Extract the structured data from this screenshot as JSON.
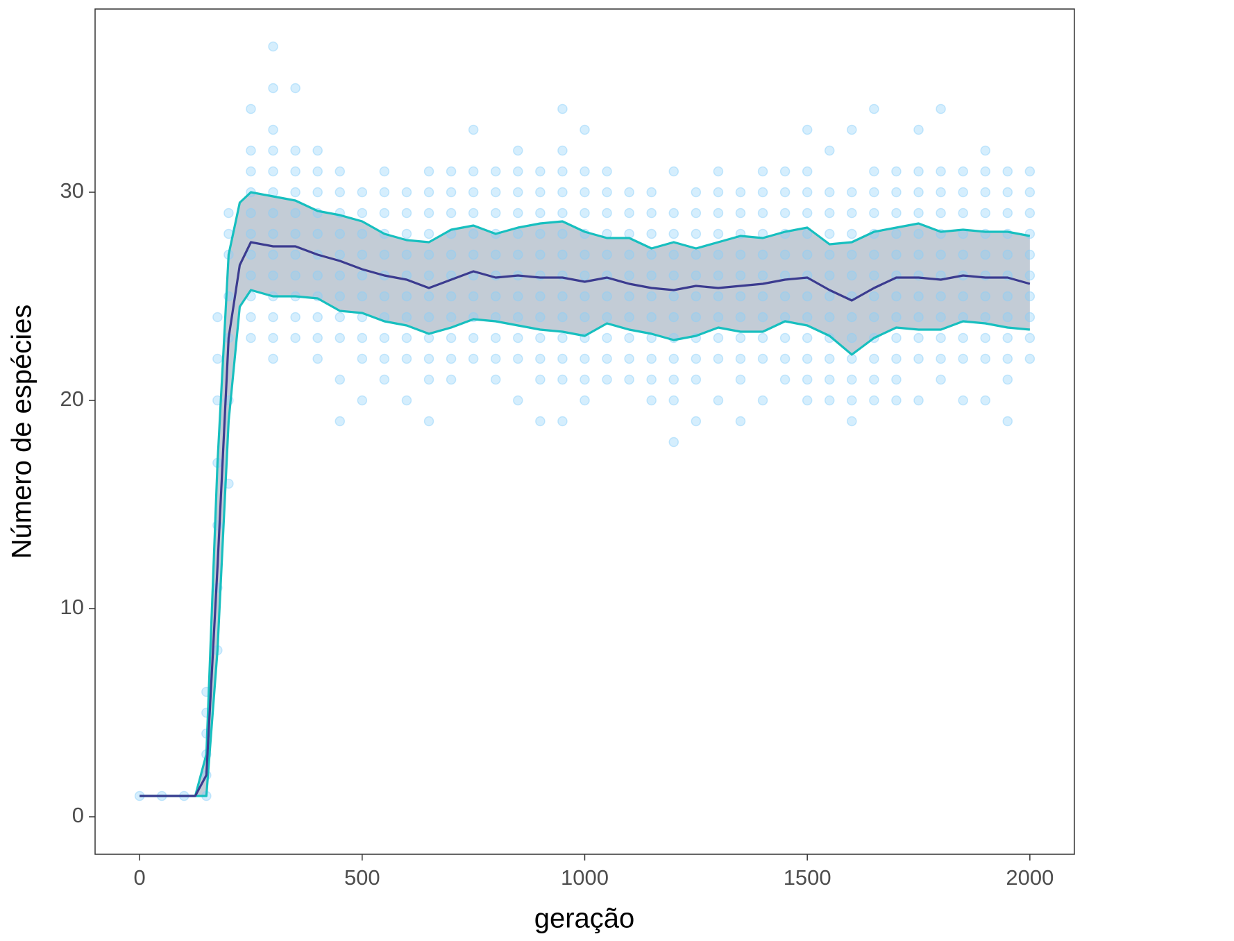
{
  "chart_data": {
    "type": "line",
    "xlabel": "geração",
    "ylabel": "Número de espécies",
    "xlim": [
      -100,
      2100
    ],
    "ylim": [
      -1.8,
      38.8
    ],
    "xticks": [
      0,
      500,
      1000,
      1500,
      2000
    ],
    "yticks": [
      0,
      10,
      20,
      30
    ],
    "x": [
      0,
      50,
      100,
      125,
      150,
      175,
      200,
      225,
      250,
      300,
      350,
      400,
      450,
      500,
      550,
      600,
      650,
      700,
      750,
      800,
      850,
      900,
      950,
      1000,
      1050,
      1100,
      1150,
      1200,
      1250,
      1300,
      1350,
      1400,
      1450,
      1500,
      1550,
      1600,
      1650,
      1700,
      1750,
      1800,
      1850,
      1900,
      1950,
      2000
    ],
    "series": [
      {
        "color": "#3b3b8f",
        "values": [
          1,
          1,
          1,
          1,
          2,
          12,
          23,
          26.5,
          27.6,
          27.4,
          27.4,
          27,
          26.7,
          26.3,
          26,
          25.8,
          25.4,
          25.8,
          26.2,
          25.9,
          26,
          25.9,
          25.9,
          25.7,
          25.9,
          25.6,
          25.4,
          25.3,
          25.5,
          25.4,
          25.5,
          25.6,
          25.8,
          25.9,
          25.3,
          24.8,
          25.4,
          25.9,
          25.9,
          25.8,
          26,
          25.9,
          25.9,
          25.6
        ]
      },
      {
        "color": "#17bfbf",
        "values": [
          1,
          1,
          1,
          1,
          3,
          17,
          27,
          29.5,
          30,
          29.8,
          29.6,
          29.1,
          28.9,
          28.6,
          28,
          27.7,
          27.6,
          28.2,
          28.4,
          28,
          28.3,
          28.5,
          28.6,
          28.1,
          27.8,
          27.8,
          27.3,
          27.6,
          27.3,
          27.6,
          27.9,
          27.8,
          28.1,
          28.3,
          27.5,
          27.6,
          28.1,
          28.3,
          28.5,
          28.1,
          28.2,
          28.1,
          28.1,
          27.9
        ]
      },
      {
        "color": "#17bfbf",
        "values": [
          1,
          1,
          1,
          1,
          1,
          8,
          19,
          24.5,
          25.3,
          25,
          25,
          24.9,
          24.3,
          24.2,
          23.8,
          23.6,
          23.2,
          23.5,
          23.9,
          23.8,
          23.6,
          23.4,
          23.3,
          23.1,
          23.7,
          23.4,
          23.2,
          22.9,
          23.1,
          23.5,
          23.3,
          23.3,
          23.8,
          23.6,
          23.1,
          22.2,
          23,
          23.5,
          23.4,
          23.4,
          23.8,
          23.7,
          23.5,
          23.4
        ]
      }
    ],
    "ribbon_color": "#b4bfcc",
    "points": {
      "color": "#87cefa",
      "columns": [
        {
          "x": 0,
          "y": [
            1
          ]
        },
        {
          "x": 50,
          "y": [
            1
          ]
        },
        {
          "x": 100,
          "y": [
            1
          ]
        },
        {
          "x": 150,
          "y": [
            1,
            2,
            3,
            4,
            5,
            6
          ]
        },
        {
          "x": 175,
          "y": [
            8,
            11,
            14,
            17,
            20,
            22,
            24
          ]
        },
        {
          "x": 200,
          "y": [
            16,
            20,
            23,
            25,
            27,
            28,
            29
          ]
        },
        {
          "x": 250,
          "y": [
            23,
            24,
            25,
            26,
            27,
            28,
            29,
            30,
            31,
            32,
            34
          ]
        },
        {
          "x": 300,
          "y": [
            22,
            23,
            24,
            25,
            26,
            27,
            28,
            29,
            30,
            31,
            32,
            33,
            35,
            37
          ]
        },
        {
          "x": 350,
          "y": [
            23,
            24,
            25,
            26,
            27,
            28,
            29,
            30,
            31,
            32,
            35
          ]
        },
        {
          "x": 400,
          "y": [
            22,
            23,
            24,
            25,
            26,
            27,
            28,
            29,
            30,
            31,
            32
          ]
        },
        {
          "x": 450,
          "y": [
            19,
            21,
            23,
            24,
            25,
            26,
            27,
            28,
            29,
            30,
            31
          ]
        },
        {
          "x": 500,
          "y": [
            20,
            22,
            23,
            24,
            25,
            26,
            27,
            28,
            29,
            30
          ]
        },
        {
          "x": 550,
          "y": [
            21,
            22,
            23,
            24,
            25,
            26,
            27,
            28,
            29,
            30,
            31
          ]
        },
        {
          "x": 600,
          "y": [
            20,
            22,
            23,
            24,
            25,
            26,
            27,
            28,
            29,
            30
          ]
        },
        {
          "x": 650,
          "y": [
            19,
            21,
            22,
            23,
            24,
            25,
            26,
            27,
            28,
            29,
            30,
            31
          ]
        },
        {
          "x": 700,
          "y": [
            21,
            22,
            23,
            24,
            25,
            26,
            27,
            28,
            29,
            30,
            31
          ]
        },
        {
          "x": 750,
          "y": [
            22,
            23,
            24,
            25,
            26,
            27,
            28,
            29,
            30,
            31,
            33
          ]
        },
        {
          "x": 800,
          "y": [
            21,
            22,
            23,
            24,
            25,
            26,
            27,
            28,
            29,
            30,
            31
          ]
        },
        {
          "x": 850,
          "y": [
            20,
            22,
            23,
            24,
            25,
            26,
            27,
            28,
            29,
            30,
            31,
            32
          ]
        },
        {
          "x": 900,
          "y": [
            19,
            21,
            22,
            23,
            24,
            25,
            26,
            27,
            28,
            29,
            30,
            31
          ]
        },
        {
          "x": 950,
          "y": [
            19,
            21,
            22,
            23,
            24,
            25,
            26,
            27,
            28,
            29,
            30,
            31,
            32,
            34
          ]
        },
        {
          "x": 1000,
          "y": [
            20,
            21,
            22,
            23,
            24,
            25,
            26,
            27,
            28,
            29,
            30,
            31,
            33
          ]
        },
        {
          "x": 1050,
          "y": [
            21,
            22,
            23,
            24,
            25,
            26,
            27,
            28,
            29,
            30,
            31
          ]
        },
        {
          "x": 1100,
          "y": [
            21,
            22,
            23,
            24,
            25,
            26,
            27,
            28,
            29,
            30
          ]
        },
        {
          "x": 1150,
          "y": [
            20,
            21,
            22,
            23,
            24,
            25,
            26,
            27,
            28,
            29,
            30
          ]
        },
        {
          "x": 1200,
          "y": [
            18,
            20,
            21,
            22,
            23,
            24,
            25,
            26,
            27,
            28,
            29,
            31
          ]
        },
        {
          "x": 1250,
          "y": [
            19,
            21,
            22,
            23,
            24,
            25,
            26,
            27,
            28,
            29,
            30
          ]
        },
        {
          "x": 1300,
          "y": [
            20,
            22,
            23,
            24,
            25,
            26,
            27,
            28,
            29,
            30,
            31
          ]
        },
        {
          "x": 1350,
          "y": [
            19,
            21,
            22,
            23,
            24,
            25,
            26,
            27,
            28,
            29,
            30
          ]
        },
        {
          "x": 1400,
          "y": [
            20,
            22,
            23,
            24,
            25,
            26,
            27,
            28,
            29,
            30,
            31
          ]
        },
        {
          "x": 1450,
          "y": [
            21,
            22,
            23,
            24,
            25,
            26,
            27,
            28,
            29,
            30,
            31
          ]
        },
        {
          "x": 1500,
          "y": [
            20,
            21,
            22,
            23,
            24,
            25,
            26,
            27,
            28,
            29,
            30,
            31,
            33
          ]
        },
        {
          "x": 1550,
          "y": [
            20,
            21,
            22,
            23,
            24,
            25,
            26,
            27,
            28,
            29,
            30,
            32
          ]
        },
        {
          "x": 1600,
          "y": [
            19,
            20,
            21,
            22,
            23,
            24,
            25,
            26,
            27,
            28,
            29,
            30,
            33
          ]
        },
        {
          "x": 1650,
          "y": [
            20,
            21,
            22,
            23,
            24,
            25,
            26,
            27,
            28,
            29,
            30,
            31,
            34
          ]
        },
        {
          "x": 1700,
          "y": [
            20,
            21,
            22,
            23,
            24,
            25,
            26,
            27,
            28,
            29,
            30,
            31
          ]
        },
        {
          "x": 1750,
          "y": [
            20,
            22,
            23,
            24,
            25,
            26,
            27,
            28,
            29,
            30,
            31,
            33
          ]
        },
        {
          "x": 1800,
          "y": [
            21,
            22,
            23,
            24,
            25,
            26,
            27,
            28,
            29,
            30,
            31,
            34
          ]
        },
        {
          "x": 1850,
          "y": [
            20,
            22,
            23,
            24,
            25,
            26,
            27,
            28,
            29,
            30,
            31
          ]
        },
        {
          "x": 1900,
          "y": [
            20,
            22,
            23,
            24,
            25,
            26,
            27,
            28,
            29,
            30,
            31,
            32
          ]
        },
        {
          "x": 1950,
          "y": [
            19,
            21,
            22,
            23,
            24,
            25,
            26,
            27,
            28,
            29,
            30,
            31
          ]
        },
        {
          "x": 2000,
          "y": [
            22,
            23,
            24,
            25,
            26,
            27,
            28,
            29,
            30,
            31
          ]
        }
      ]
    }
  }
}
